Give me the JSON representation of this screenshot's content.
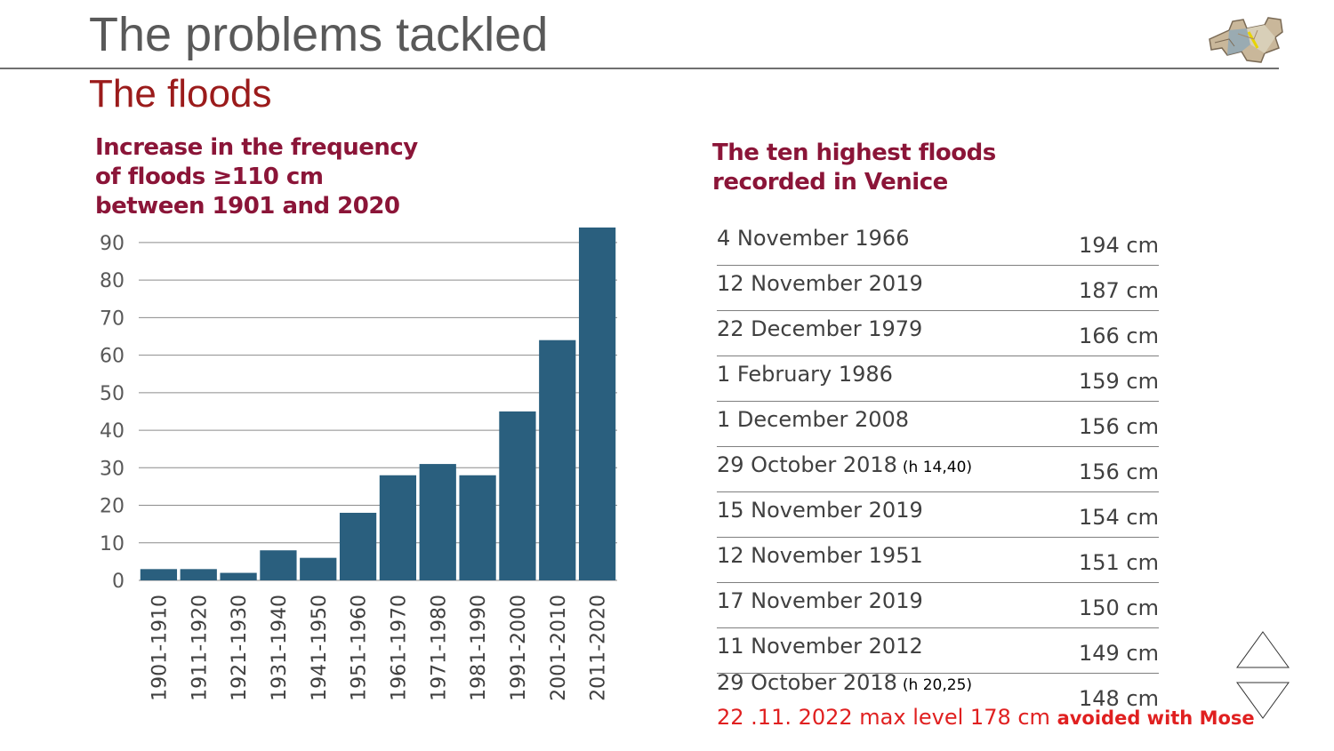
{
  "slide": {
    "title": "The problems tackled",
    "subtitle": "The floods"
  },
  "chart_title": [
    "Increase in the frequency",
    "of floods ≥110 cm",
    " between 1901 and 2020"
  ],
  "chart_data": {
    "type": "bar",
    "title": "Increase in the frequency of floods ≥110 cm between 1901 and 2020",
    "categories": [
      "1901-1910",
      "1911-1920",
      "1921-1930",
      "1931-1940",
      "1941-1950",
      "1951-1960",
      "1961-1970",
      "1971-1980",
      "1981-1990",
      "1991-2000",
      "2001-2010",
      "2011-2020"
    ],
    "values": [
      3,
      3,
      2,
      8,
      6,
      18,
      28,
      31,
      28,
      45,
      64,
      94
    ],
    "ylim": [
      0,
      94
    ],
    "yticks": [
      0,
      10,
      20,
      30,
      40,
      50,
      60,
      70,
      80,
      90
    ],
    "grid": true,
    "color": "#2a5f7e"
  },
  "table_title": [
    "The ten highest floods",
    "recorded in Venice"
  ],
  "floods": [
    {
      "date": "4 November 1966",
      "note": "",
      "level": "194 cm"
    },
    {
      "date": "12 November 2019",
      "note": "",
      "level": "187 cm"
    },
    {
      "date": "22 December 1979",
      "note": "",
      "level": "166 cm"
    },
    {
      "date": "1 February 1986",
      "note": "",
      "level": "159 cm"
    },
    {
      "date": "1 December 2008",
      "note": "",
      "level": "156 cm"
    },
    {
      "date": "29 October 2018",
      "note": "(h 14,40)",
      "level": "156 cm"
    },
    {
      "date": "15 November 2019",
      "note": "",
      "level": "154 cm"
    },
    {
      "date": "12 November 1951",
      "note": "",
      "level": "151 cm"
    },
    {
      "date": "17 November 2019",
      "note": "",
      "level": "150 cm"
    },
    {
      "date": "11 November 2012",
      "note": "",
      "level": "149 cm"
    },
    {
      "date": "29 October 2018",
      "note": "(h 20,25)",
      "level": "148 cm"
    }
  ],
  "mose": {
    "text": "22 .11. 2022  max level 178 cm ",
    "bold": "avoided with Mose"
  },
  "colors": {
    "title": "#595959",
    "accent": "#9b1b1b",
    "heading": "#8b1538",
    "bar": "#2a5f7e",
    "alert": "#e02020"
  }
}
